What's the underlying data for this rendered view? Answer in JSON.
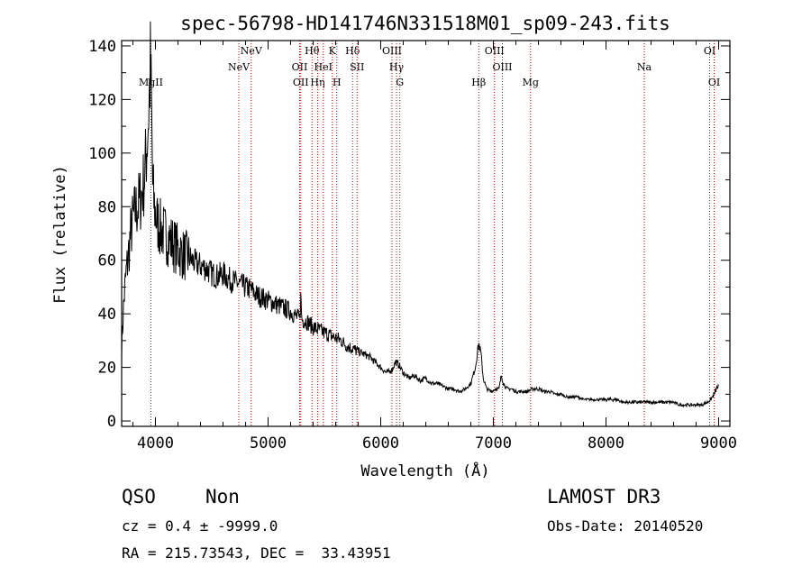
{
  "chart_data": {
    "type": "line",
    "title": "spec-56798-HD141746N331518M01_sp09-243.fits",
    "xlabel": "Wavelength (Å)",
    "ylabel": "Flux (relative)",
    "xlim": [
      3700,
      9100
    ],
    "ylim": [
      -2,
      142
    ],
    "xticks": [
      4000,
      5000,
      6000,
      7000,
      8000,
      9000
    ],
    "yticks": [
      0,
      20,
      40,
      60,
      80,
      100,
      120,
      140
    ],
    "series": [
      {
        "name": "spectrum",
        "x": [
          3700,
          3720,
          3740,
          3760,
          3780,
          3800,
          3820,
          3840,
          3860,
          3880,
          3900,
          3920,
          3940,
          3955,
          3965,
          3975,
          3990,
          4010,
          4040,
          4080,
          4120,
          4160,
          4200,
          4250,
          4300,
          4350,
          4400,
          4450,
          4500,
          4550,
          4600,
          4650,
          4700,
          4750,
          4800,
          4850,
          4900,
          4950,
          5000,
          5050,
          5100,
          5150,
          5200,
          5250,
          5280,
          5290,
          5300,
          5350,
          5400,
          5450,
          5500,
          5550,
          5600,
          5650,
          5700,
          5750,
          5800,
          5850,
          5900,
          5950,
          6000,
          6050,
          6100,
          6130,
          6160,
          6200,
          6250,
          6300,
          6350,
          6400,
          6450,
          6500,
          6550,
          6600,
          6650,
          6700,
          6750,
          6800,
          6840,
          6870,
          6890,
          6910,
          6940,
          6980,
          7020,
          7050,
          7070,
          7090,
          7120,
          7160,
          7200,
          7250,
          7300,
          7350,
          7400,
          7450,
          7500,
          7550,
          7600,
          7650,
          7700,
          7750,
          7800,
          7850,
          7900,
          7950,
          8000,
          8050,
          8100,
          8150,
          8200,
          8250,
          8300,
          8350,
          8400,
          8450,
          8500,
          8550,
          8600,
          8650,
          8700,
          8750,
          8800,
          8850,
          8900,
          8930,
          8960,
          8980,
          9000
        ],
        "values": [
          28,
          45,
          55,
          62,
          70,
          75,
          78,
          80,
          82,
          85,
          90,
          100,
          115,
          132,
          118,
          88,
          80,
          75,
          72,
          70,
          68,
          66,
          64,
          62,
          61,
          59,
          58,
          57,
          55,
          54,
          55,
          53,
          52,
          51,
          50,
          49,
          47,
          46,
          45,
          44,
          43,
          42,
          41,
          39,
          38,
          46,
          38,
          37,
          35,
          34,
          33,
          32,
          31,
          30,
          28,
          27,
          26,
          25,
          24,
          22,
          20,
          18,
          19,
          22,
          21,
          18,
          16,
          17,
          15,
          16,
          14,
          14,
          13,
          12,
          12,
          11,
          12,
          14,
          20,
          29,
          25,
          16,
          12,
          11,
          12,
          12,
          17,
          14,
          12,
          12,
          11,
          11,
          11,
          12,
          12,
          11,
          11,
          10,
          10,
          9,
          9,
          9,
          8,
          8,
          8,
          8,
          8,
          8,
          8,
          7,
          7,
          7,
          7,
          7,
          7,
          7,
          7,
          7,
          7,
          6,
          6,
          6,
          6,
          6,
          7,
          8,
          10,
          12,
          13
        ]
      }
    ],
    "line_markers": [
      {
        "name": "MgII",
        "x": 3960,
        "row": 3
      },
      {
        "name": "NeV",
        "x": 4740,
        "row": 2
      },
      {
        "name": "NeV",
        "x": 4850,
        "row": 1
      },
      {
        "name": "OII",
        "x": 5280,
        "row": 2
      },
      {
        "name": "OII",
        "x": 5290,
        "row": 3
      },
      {
        "name": "Hθ",
        "x": 5390,
        "row": 1
      },
      {
        "name": "Hη",
        "x": 5440,
        "row": 3
      },
      {
        "name": "HeI",
        "x": 5490,
        "row": 2
      },
      {
        "name": "K",
        "x": 5570,
        "row": 1
      },
      {
        "name": "H",
        "x": 5610,
        "row": 3
      },
      {
        "name": "Hδ",
        "x": 5750,
        "row": 1
      },
      {
        "name": "SII",
        "x": 5790,
        "row": 2
      },
      {
        "name": "OIII",
        "x": 6100,
        "row": 1
      },
      {
        "name": "Hγ",
        "x": 6140,
        "row": 2
      },
      {
        "name": "G",
        "x": 6170,
        "row": 3
      },
      {
        "name": "Hβ",
        "x": 6870,
        "row": 3
      },
      {
        "name": "OIII",
        "x": 7010,
        "row": 1
      },
      {
        "name": "OIII",
        "x": 7080,
        "row": 2
      },
      {
        "name": "Mg",
        "x": 7330,
        "row": 3
      },
      {
        "name": "Na",
        "x": 8340,
        "row": 2
      },
      {
        "name": "OI",
        "x": 8920,
        "row": 1
      },
      {
        "name": "OI",
        "x": 8960,
        "row": 3
      }
    ],
    "marker_color": "#cc0000"
  },
  "info": {
    "class": "QSO",
    "subclass": "Non",
    "survey": "LAMOST DR3",
    "cz": "cz = 0.4 ± -9999.0",
    "obs_date": "Obs-Date: 20140520",
    "coords": "RA = 215.73543, DEC =  33.43951"
  }
}
